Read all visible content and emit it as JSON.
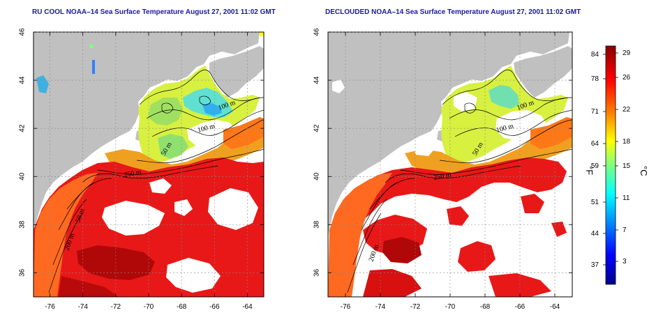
{
  "maps": [
    {
      "title": "RU COOL NOAA–14 Sea Surface Temperature August 27, 2001 11:02 GMT",
      "variant": "raw",
      "contour_labels": [
        "100 m",
        "100 m",
        "50 m",
        "250 m",
        "50 m",
        "200 m"
      ]
    },
    {
      "title": "DECLOUDED NOAA–14 Sea Surface Temperature August 27, 2001 11:02 GMT",
      "variant": "declouded",
      "contour_labels": [
        "100 m",
        "100 m",
        "50 m",
        "250 m",
        "200 m"
      ]
    }
  ],
  "axes": {
    "lon_ticks": [
      "-76",
      "-74",
      "-72",
      "-70",
      "-68",
      "-66",
      "-64"
    ],
    "lat_ticks": [
      "46",
      "44",
      "42",
      "40",
      "38",
      "36"
    ],
    "lon_range": [
      -77,
      -63
    ],
    "lat_range": [
      35,
      46
    ]
  },
  "colorbar": {
    "fahrenheit_ticks": [
      "84",
      "78",
      "71",
      "64",
      "59",
      "51",
      "44",
      "37"
    ],
    "celsius_ticks": [
      "29",
      "26",
      "22",
      "18",
      "15",
      "11",
      "7",
      "3"
    ],
    "fahrenheit_unit": "°F",
    "celsius_unit": "°C",
    "colors": [
      "#00008b",
      "#0000ff",
      "#0080ff",
      "#00ffff",
      "#7fff7f",
      "#ffff00",
      "#ff8000",
      "#ff0000",
      "#8b0000"
    ]
  },
  "colors": {
    "land": "#c0c0c0",
    "title": "#1a1aa0",
    "cloud": "#ffffff"
  }
}
